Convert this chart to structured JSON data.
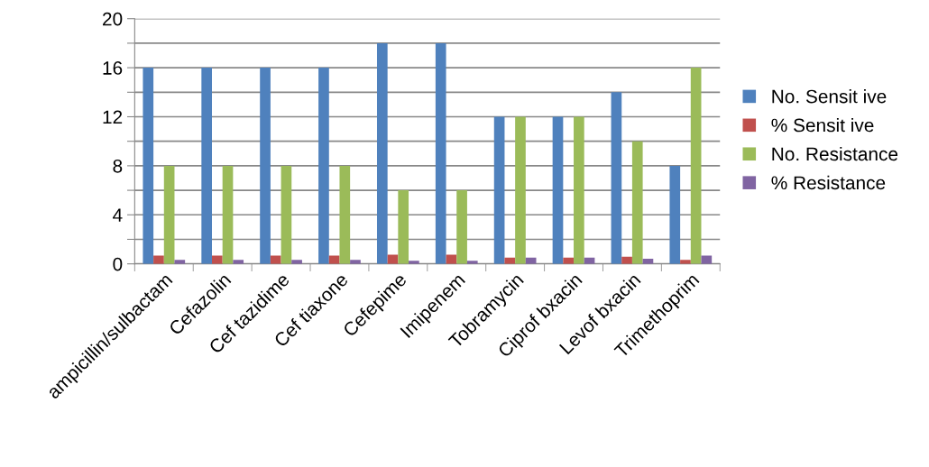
{
  "chart_data": {
    "type": "bar",
    "categories": [
      "ampicillin/sulbactam",
      "Cefazolin",
      "Cef tazidime",
      "Cef tiaxone",
      "Cefepime",
      "Imipenem",
      "Tobramycin",
      "Ciprof bxacin",
      "Levof bxacin",
      "Trimethoprim"
    ],
    "series": [
      {
        "name": "No. Sensit ive",
        "color": "#4f81bd",
        "values": [
          16,
          16,
          16,
          16,
          18,
          18,
          12,
          12,
          14,
          8
        ]
      },
      {
        "name": "% Sensit ive",
        "color": "#c0504d",
        "values": [
          0.67,
          0.67,
          0.67,
          0.67,
          0.75,
          0.75,
          0.5,
          0.5,
          0.58,
          0.33
        ]
      },
      {
        "name": "No. Resistance",
        "color": "#9bbb59",
        "values": [
          8,
          8,
          8,
          8,
          6,
          6,
          12,
          12,
          10,
          16
        ]
      },
      {
        "name": "% Resistance",
        "color": "#8064a2",
        "values": [
          0.33,
          0.33,
          0.33,
          0.33,
          0.25,
          0.25,
          0.5,
          0.5,
          0.42,
          0.67
        ]
      }
    ],
    "ylim": [
      0,
      20
    ],
    "yticks": [
      0,
      {
        "value": 2,
        "label": null
      },
      4,
      {
        "value": 6,
        "label": null
      },
      8,
      {
        "value": 10,
        "label": null
      },
      12,
      {
        "value": 14,
        "label": null
      },
      16,
      {
        "value": 18,
        "label": null
      },
      20
    ],
    "grid": "y",
    "legend": "right"
  }
}
